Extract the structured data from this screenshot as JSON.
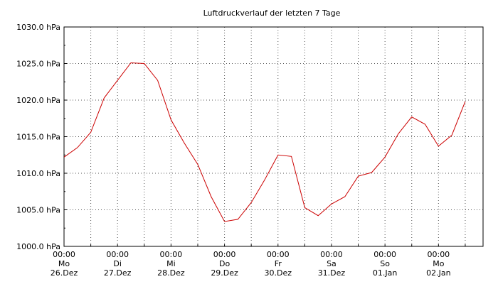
{
  "chart_data": {
    "type": "line",
    "title": "Luftdruckverlauf der letzten 7 Tage",
    "y_unit": "hPa",
    "ylim": [
      1000,
      1030
    ],
    "y_ticks": [
      1000,
      1005,
      1010,
      1015,
      1020,
      1025,
      1030
    ],
    "y_tick_labels": [
      "1000.0 hPa",
      "1005.0 hPa",
      "1010.0 hPa",
      "1015.0 hPa",
      "1020.0 hPa",
      "1025.0 hPa",
      "1030.0 hPa"
    ],
    "x_ticks": [
      {
        "time": "00:00",
        "day": "Mo",
        "date": "26.Dez",
        "hour": 0
      },
      {
        "time": "00:00",
        "day": "Di",
        "date": "27.Dez",
        "hour": 24
      },
      {
        "time": "00:00",
        "day": "Mi",
        "date": "28.Dez",
        "hour": 48
      },
      {
        "time": "00:00",
        "day": "Do",
        "date": "29.Dez",
        "hour": 72
      },
      {
        "time": "00:00",
        "day": "Fr",
        "date": "30.Dez",
        "hour": 96
      },
      {
        "time": "00:00",
        "day": "Sa",
        "date": "31.Dez",
        "hour": 120
      },
      {
        "time": "00:00",
        "day": "So",
        "date": "01.Jan",
        "hour": 144
      },
      {
        "time": "00:00",
        "day": "Mo",
        "date": "02.Jan",
        "hour": 168
      }
    ],
    "xlim_hours": [
      0,
      188
    ],
    "grid": true,
    "series": [
      {
        "color": "#cc0000",
        "x_hours": [
          0,
          6,
          12,
          18,
          24,
          30,
          36,
          42,
          48,
          54,
          60,
          66,
          72,
          78,
          84,
          90,
          96,
          102,
          108,
          114,
          120,
          126,
          132,
          138,
          144,
          150,
          156,
          162,
          168,
          174,
          180
        ],
        "values": [
          1012.2,
          1013.5,
          1015.6,
          1020.3,
          1022.7,
          1025.1,
          1025.0,
          1022.7,
          1017.3,
          1014.1,
          1011.2,
          1006.8,
          1003.4,
          1003.7,
          1006.0,
          1009.1,
          1012.5,
          1012.3,
          1005.3,
          1004.2,
          1005.8,
          1006.8,
          1009.6,
          1010.1,
          1012.2,
          1015.4,
          1017.7,
          1016.7,
          1013.7,
          1015.2,
          1019.8
        ]
      }
    ]
  }
}
